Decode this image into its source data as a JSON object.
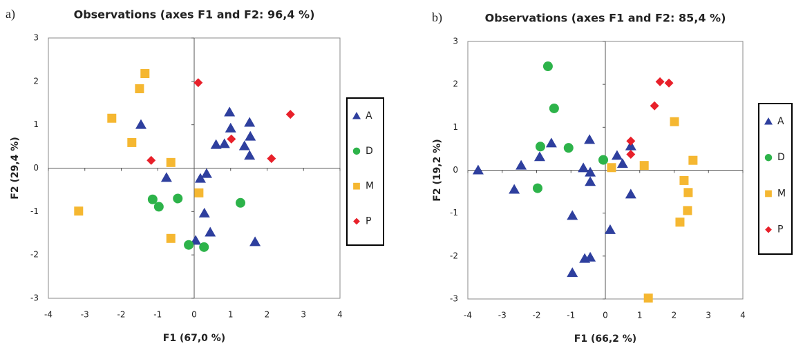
{
  "chart_data": [
    {
      "type": "scatter",
      "label": "a)",
      "title": "Observations (axes F1 and F2: 96,4 %)",
      "x_label": "F1 (67,0 %)",
      "y_label": "F2 (29,4 %)",
      "xlim": [
        -4,
        4
      ],
      "ylim": [
        -3,
        3
      ],
      "xticks": [
        -4,
        -3,
        -2,
        -1,
        0,
        1,
        2,
        3,
        4
      ],
      "yticks": [
        -3,
        -2,
        -1,
        0,
        1,
        2,
        3
      ],
      "series": [
        {
          "name": "A",
          "color": "#2e3f9e",
          "marker": "triangle",
          "x": [
            -1.46,
            -0.76,
            0.97,
            1.0,
            0.6,
            0.83,
            1.52,
            1.54,
            1.38,
            1.52,
            0.17,
            0.34,
            0.28,
            0.44,
            0.04,
            1.67
          ],
          "values": [
            1.0,
            -0.22,
            1.29,
            0.92,
            0.54,
            0.56,
            1.05,
            0.73,
            0.51,
            0.29,
            -0.24,
            -0.13,
            -1.04,
            -1.48,
            -1.67,
            -1.7
          ]
        },
        {
          "name": "D",
          "color": "#2db34a",
          "marker": "circle",
          "x": [
            -1.14,
            -0.97,
            -0.45,
            1.27,
            -0.15,
            0.27
          ],
          "values": [
            -0.72,
            -0.89,
            -0.7,
            -0.8,
            -1.77,
            -1.82
          ]
        },
        {
          "name": "M",
          "color": "#f5b731",
          "marker": "square",
          "x": [
            -1.35,
            -1.5,
            -2.26,
            -1.71,
            -0.64,
            0.13,
            -3.17,
            -0.64
          ],
          "values": [
            2.18,
            1.83,
            1.15,
            0.59,
            0.13,
            -0.57,
            -0.99,
            -1.62
          ]
        },
        {
          "name": "P",
          "color": "#e8202a",
          "marker": "diamond",
          "x": [
            0.11,
            2.64,
            1.02,
            -1.18,
            2.12
          ],
          "values": [
            1.97,
            1.24,
            0.67,
            0.18,
            0.22
          ]
        }
      ]
    },
    {
      "type": "scatter",
      "label": "b)",
      "title": "Observations (axes F1 and F2: 85,4 %)",
      "x_label": "F1 (66,2 %)",
      "y_label": "F2 (19,2 %)",
      "xlim": [
        -4,
        4
      ],
      "ylim": [
        -3,
        3
      ],
      "xticks": [
        -4,
        -3,
        -2,
        -1,
        0,
        1,
        2,
        3,
        4
      ],
      "yticks": [
        -3,
        -2,
        -1,
        0,
        1,
        2,
        3
      ],
      "series": [
        {
          "name": "A",
          "color": "#2e3f9e",
          "marker": "triangle",
          "x": [
            -3.7,
            -2.65,
            -2.45,
            -1.91,
            -1.57,
            -0.46,
            -0.64,
            -0.44,
            -0.44,
            -0.96,
            -0.6,
            -0.44,
            -0.96,
            0.14,
            0.34,
            0.5,
            0.74,
            0.74
          ],
          "values": [
            0.0,
            -0.45,
            0.11,
            0.31,
            0.63,
            0.71,
            0.05,
            -0.05,
            -0.27,
            -1.06,
            -2.06,
            -2.03,
            -2.39,
            -1.39,
            0.34,
            0.15,
            0.56,
            -0.56
          ]
        },
        {
          "name": "D",
          "color": "#2db34a",
          "marker": "circle",
          "x": [
            -1.67,
            -1.49,
            -1.89,
            -1.07,
            -0.06,
            -1.97
          ],
          "values": [
            2.42,
            1.44,
            0.55,
            0.52,
            0.24,
            -0.42
          ]
        },
        {
          "name": "M",
          "color": "#f5b731",
          "marker": "square",
          "x": [
            2.01,
            0.18,
            1.13,
            2.55,
            2.29,
            2.41,
            2.39,
            2.17,
            1.25
          ],
          "values": [
            1.13,
            0.06,
            0.11,
            0.23,
            -0.24,
            -0.52,
            -0.94,
            -1.21,
            -2.98
          ]
        },
        {
          "name": "P",
          "color": "#e8202a",
          "marker": "diamond",
          "x": [
            1.59,
            1.85,
            1.43,
            0.74,
            0.74
          ],
          "values": [
            2.06,
            2.03,
            1.5,
            0.68,
            0.37
          ]
        }
      ]
    }
  ]
}
